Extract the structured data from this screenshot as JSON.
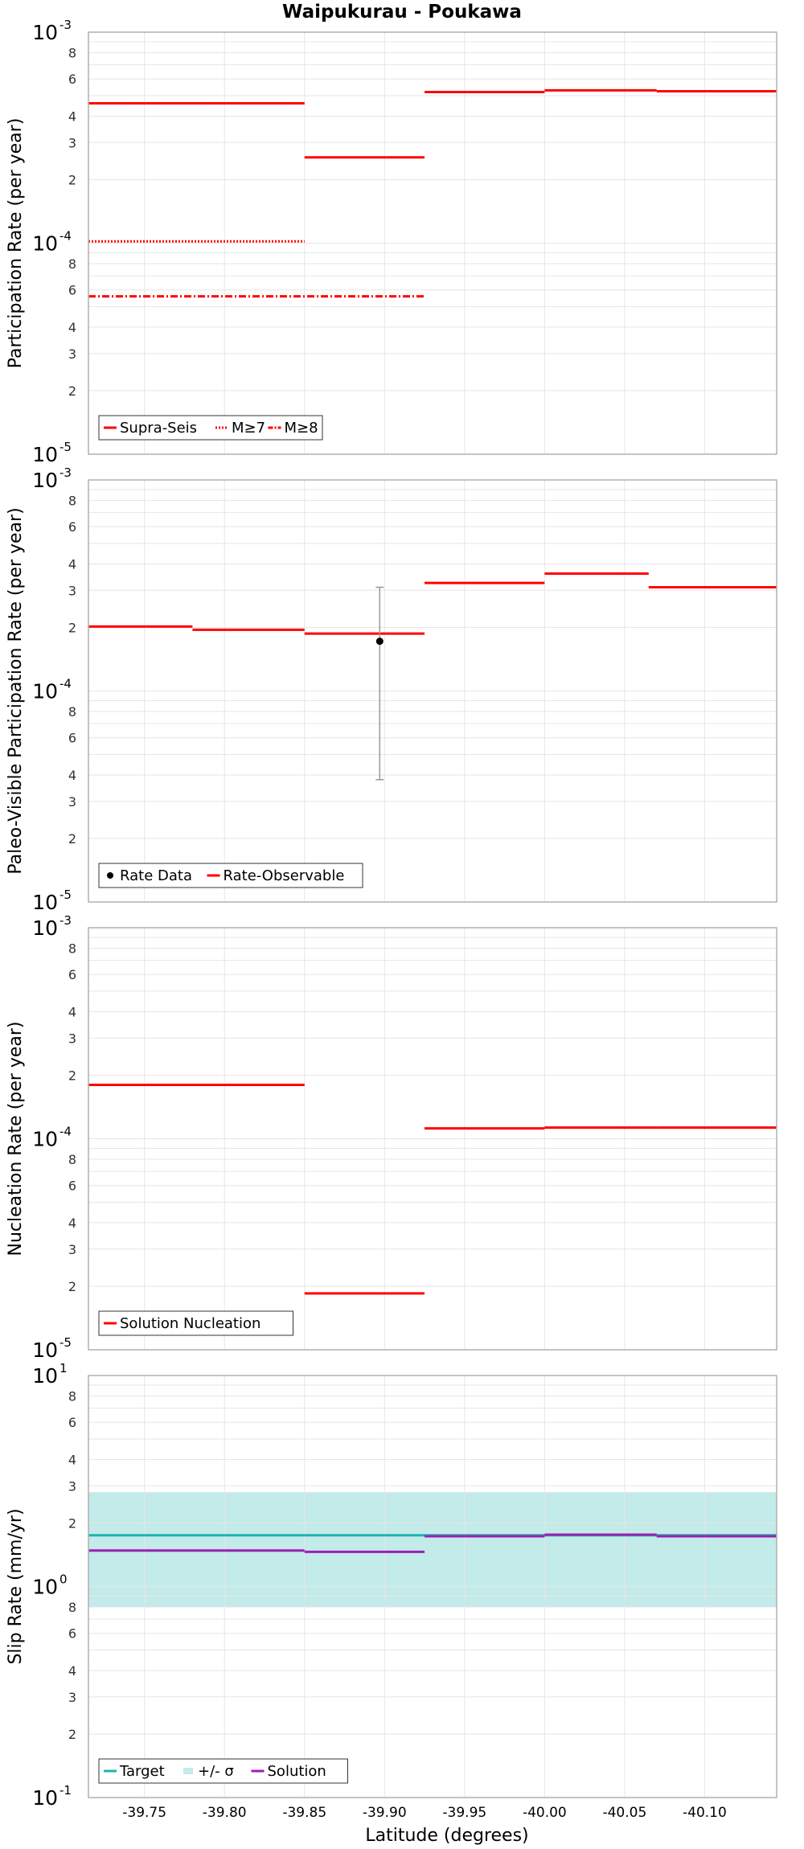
{
  "chart_data": [
    {
      "type": "line",
      "title": "Waipukurau - Poukawa",
      "xlabel": "",
      "ylabel": "Participation Rate (per year)",
      "xlim": [
        -39.715,
        -40.145
      ],
      "ylim": [
        1e-05,
        0.001
      ],
      "yscale": "log",
      "grid": true,
      "legend_position": "bottom-left",
      "legend": [
        "Supra-Seis",
        "M≥7",
        "M≥8"
      ],
      "series": [
        {
          "name": "Supra-Seis",
          "style": "solid",
          "color": "#ff0000",
          "segments": [
            [
              -39.715,
              -39.85,
              0.00046
            ],
            [
              -39.85,
              -39.925,
              0.000255
            ],
            [
              -39.925,
              -40.0,
              0.00052
            ],
            [
              -40.0,
              -40.07,
              0.00053
            ],
            [
              -40.07,
              -40.145,
              0.000525
            ]
          ]
        },
        {
          "name": "M≥7",
          "style": "dotted",
          "color": "#ff0000",
          "segments": [
            [
              -39.715,
              -39.85,
              0.000102
            ]
          ]
        },
        {
          "name": "M≥8",
          "style": "dashdot",
          "color": "#ff0000",
          "segments": [
            [
              -39.715,
              -39.925,
              5.6e-05
            ]
          ]
        }
      ]
    },
    {
      "type": "line",
      "title": "",
      "xlabel": "",
      "ylabel": "Paleo-Visible Participation Rate (per year)",
      "xlim": [
        -39.715,
        -40.145
      ],
      "ylim": [
        1e-05,
        0.001
      ],
      "yscale": "log",
      "grid": true,
      "legend_position": "bottom-left",
      "legend": [
        "Rate Data",
        "Rate-Observable"
      ],
      "series": [
        {
          "name": "Rate-Observable",
          "style": "solid",
          "color": "#ff0000",
          "segments": [
            [
              -39.715,
              -39.78,
              0.000202
            ],
            [
              -39.78,
              -39.85,
              0.000195
            ],
            [
              -39.85,
              -39.925,
              0.000187
            ],
            [
              -39.925,
              -40.0,
              0.000325
            ],
            [
              -40.0,
              -40.065,
              0.00036
            ],
            [
              -40.065,
              -40.145,
              0.00031
            ]
          ]
        }
      ],
      "points": [
        {
          "name": "Rate Data",
          "x": -39.897,
          "y": 0.000172,
          "y_low": 3.8e-05,
          "y_high": 0.00031
        }
      ]
    },
    {
      "type": "line",
      "title": "",
      "xlabel": "",
      "ylabel": "Nucleation Rate (per year)",
      "xlim": [
        -39.715,
        -40.145
      ],
      "ylim": [
        1e-05,
        0.001
      ],
      "yscale": "log",
      "grid": true,
      "legend_position": "bottom-left",
      "legend": [
        "Solution Nucleation"
      ],
      "series": [
        {
          "name": "Solution Nucleation",
          "style": "solid",
          "color": "#ff0000",
          "segments": [
            [
              -39.715,
              -39.85,
              0.00018
            ],
            [
              -39.85,
              -39.925,
              1.85e-05
            ],
            [
              -39.925,
              -40.0,
              0.000112
            ],
            [
              -40.0,
              -40.07,
              0.000113
            ],
            [
              -40.07,
              -40.145,
              0.000113
            ]
          ]
        }
      ]
    },
    {
      "type": "line",
      "title": "",
      "xlabel": "Latitude (degrees)",
      "ylabel": "Slip Rate (mm/yr)",
      "xlim": [
        -39.715,
        -40.145
      ],
      "ylim": [
        0.1,
        10
      ],
      "yscale": "log",
      "grid": true,
      "legend_position": "bottom-left",
      "legend": [
        "Target",
        "+/- σ",
        "Solution"
      ],
      "band": {
        "name": "+/- σ",
        "x0": -39.715,
        "x1": -40.145,
        "y_low": 0.8,
        "y_high": 2.8,
        "color": "#c2ebe9"
      },
      "series": [
        {
          "name": "Target",
          "style": "solid",
          "color": "#1fb3ad",
          "segments": [
            [
              -39.715,
              -39.925,
              1.75
            ],
            [
              -39.925,
              -40.0,
              1.75
            ],
            [
              -40.0,
              -40.07,
              1.75
            ],
            [
              -40.07,
              -40.145,
              1.75
            ]
          ]
        },
        {
          "name": "Solution",
          "style": "solid",
          "color": "#9b1fb3",
          "segments": [
            [
              -39.715,
              -39.85,
              1.48
            ],
            [
              -39.85,
              -39.925,
              1.46
            ],
            [
              -39.925,
              -40.0,
              1.73
            ],
            [
              -40.0,
              -40.07,
              1.76
            ],
            [
              -40.07,
              -40.145,
              1.73
            ]
          ]
        }
      ]
    }
  ],
  "x_ticks": [
    "-39.75",
    "-39.80",
    "-39.85",
    "-39.90",
    "-39.95",
    "-40.00",
    "-40.05",
    "-40.10"
  ],
  "x_tick_values": [
    -39.75,
    -39.8,
    -39.85,
    -39.9,
    -39.95,
    -40.0,
    -40.05,
    -40.1
  ],
  "y_minor_labels": [
    "8",
    "6",
    "4",
    "3",
    "2"
  ],
  "y_major_base": "10",
  "panel_exponents": [
    [
      "-3",
      "-4",
      "-5"
    ],
    [
      "-3",
      "-4",
      "-5"
    ],
    [
      "-3",
      "-4",
      "-5"
    ],
    [
      "1",
      "0",
      "-1"
    ]
  ],
  "colors": {
    "red": "#ff0000",
    "teal": "#1fb3ad",
    "purple": "#9b1fb3",
    "band": "#c2ebe9",
    "grid": "#e6e6e6",
    "frame": "#b0b0b0",
    "errorbar": "#999999"
  }
}
